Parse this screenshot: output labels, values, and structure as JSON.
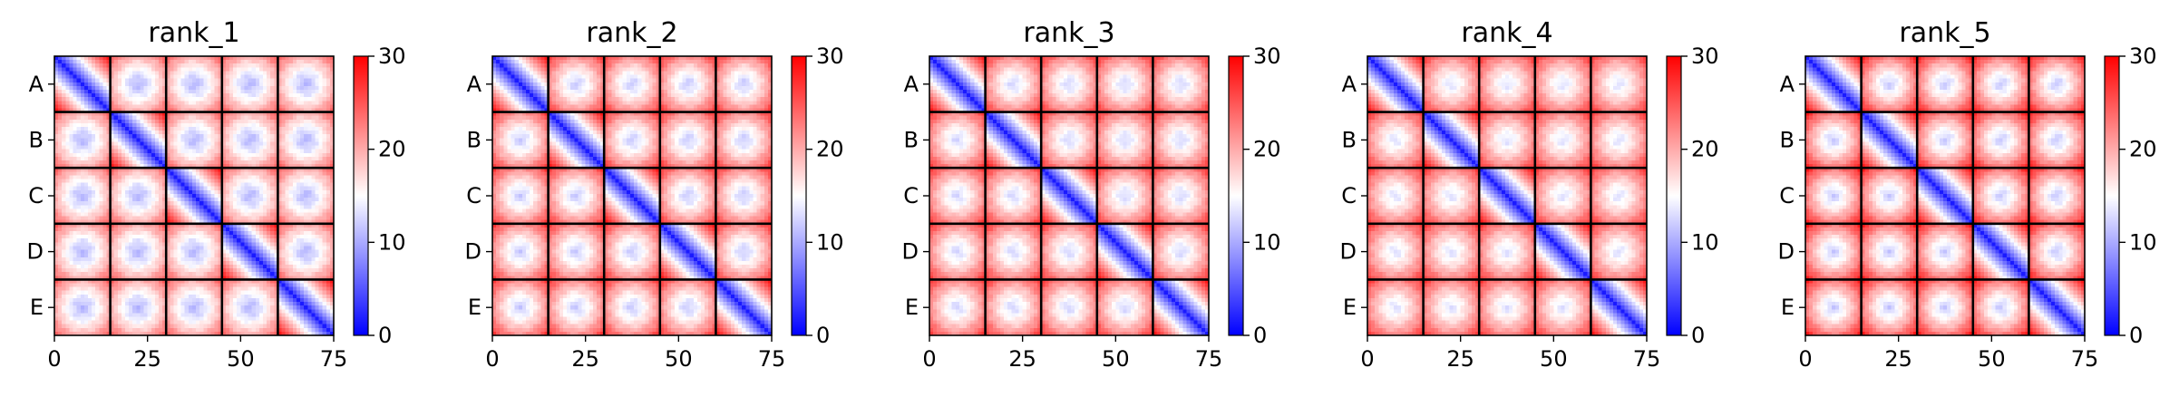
{
  "chart_data": [
    {
      "type": "heatmap",
      "title": "rank_1",
      "x_ticks": [
        0,
        25,
        50,
        75
      ],
      "y_ticks": [
        "A",
        "B",
        "C",
        "D",
        "E"
      ],
      "xlim": [
        0,
        75
      ],
      "blocks": 5,
      "block_size": 15,
      "colorbar": {
        "ticks": [
          0,
          10,
          20,
          30
        ],
        "range": [
          0,
          30
        ],
        "cmap": "bwr"
      },
      "offdiag_level": 0.62,
      "center_level": 0.36
    },
    {
      "type": "heatmap",
      "title": "rank_2",
      "x_ticks": [
        0,
        25,
        50,
        75
      ],
      "y_ticks": [
        "A",
        "B",
        "C",
        "D",
        "E"
      ],
      "xlim": [
        0,
        75
      ],
      "blocks": 5,
      "block_size": 15,
      "colorbar": {
        "ticks": [
          0,
          10,
          20,
          30
        ],
        "range": [
          0,
          30
        ],
        "cmap": "bwr"
      },
      "offdiag_level": 0.7,
      "center_level": 0.4
    },
    {
      "type": "heatmap",
      "title": "rank_3",
      "x_ticks": [
        0,
        25,
        50,
        75
      ],
      "y_ticks": [
        "A",
        "B",
        "C",
        "D",
        "E"
      ],
      "xlim": [
        0,
        75
      ],
      "blocks": 5,
      "block_size": 15,
      "colorbar": {
        "ticks": [
          0,
          10,
          20,
          30
        ],
        "range": [
          0,
          30
        ],
        "cmap": "bwr"
      },
      "offdiag_level": 0.7,
      "center_level": 0.42
    },
    {
      "type": "heatmap",
      "title": "rank_4",
      "x_ticks": [
        0,
        25,
        50,
        75
      ],
      "y_ticks": [
        "A",
        "B",
        "C",
        "D",
        "E"
      ],
      "xlim": [
        0,
        75
      ],
      "blocks": 5,
      "block_size": 15,
      "colorbar": {
        "ticks": [
          0,
          10,
          20,
          30
        ],
        "range": [
          0,
          30
        ],
        "cmap": "bwr"
      },
      "offdiag_level": 0.7,
      "center_level": 0.44
    },
    {
      "type": "heatmap",
      "title": "rank_5",
      "x_ticks": [
        0,
        25,
        50,
        75
      ],
      "y_ticks": [
        "A",
        "B",
        "C",
        "D",
        "E"
      ],
      "xlim": [
        0,
        75
      ],
      "blocks": 5,
      "block_size": 15,
      "colorbar": {
        "ticks": [
          0,
          10,
          20,
          30
        ],
        "range": [
          0,
          30
        ],
        "cmap": "bwr"
      },
      "offdiag_level": 0.76,
      "center_level": 0.4
    }
  ]
}
